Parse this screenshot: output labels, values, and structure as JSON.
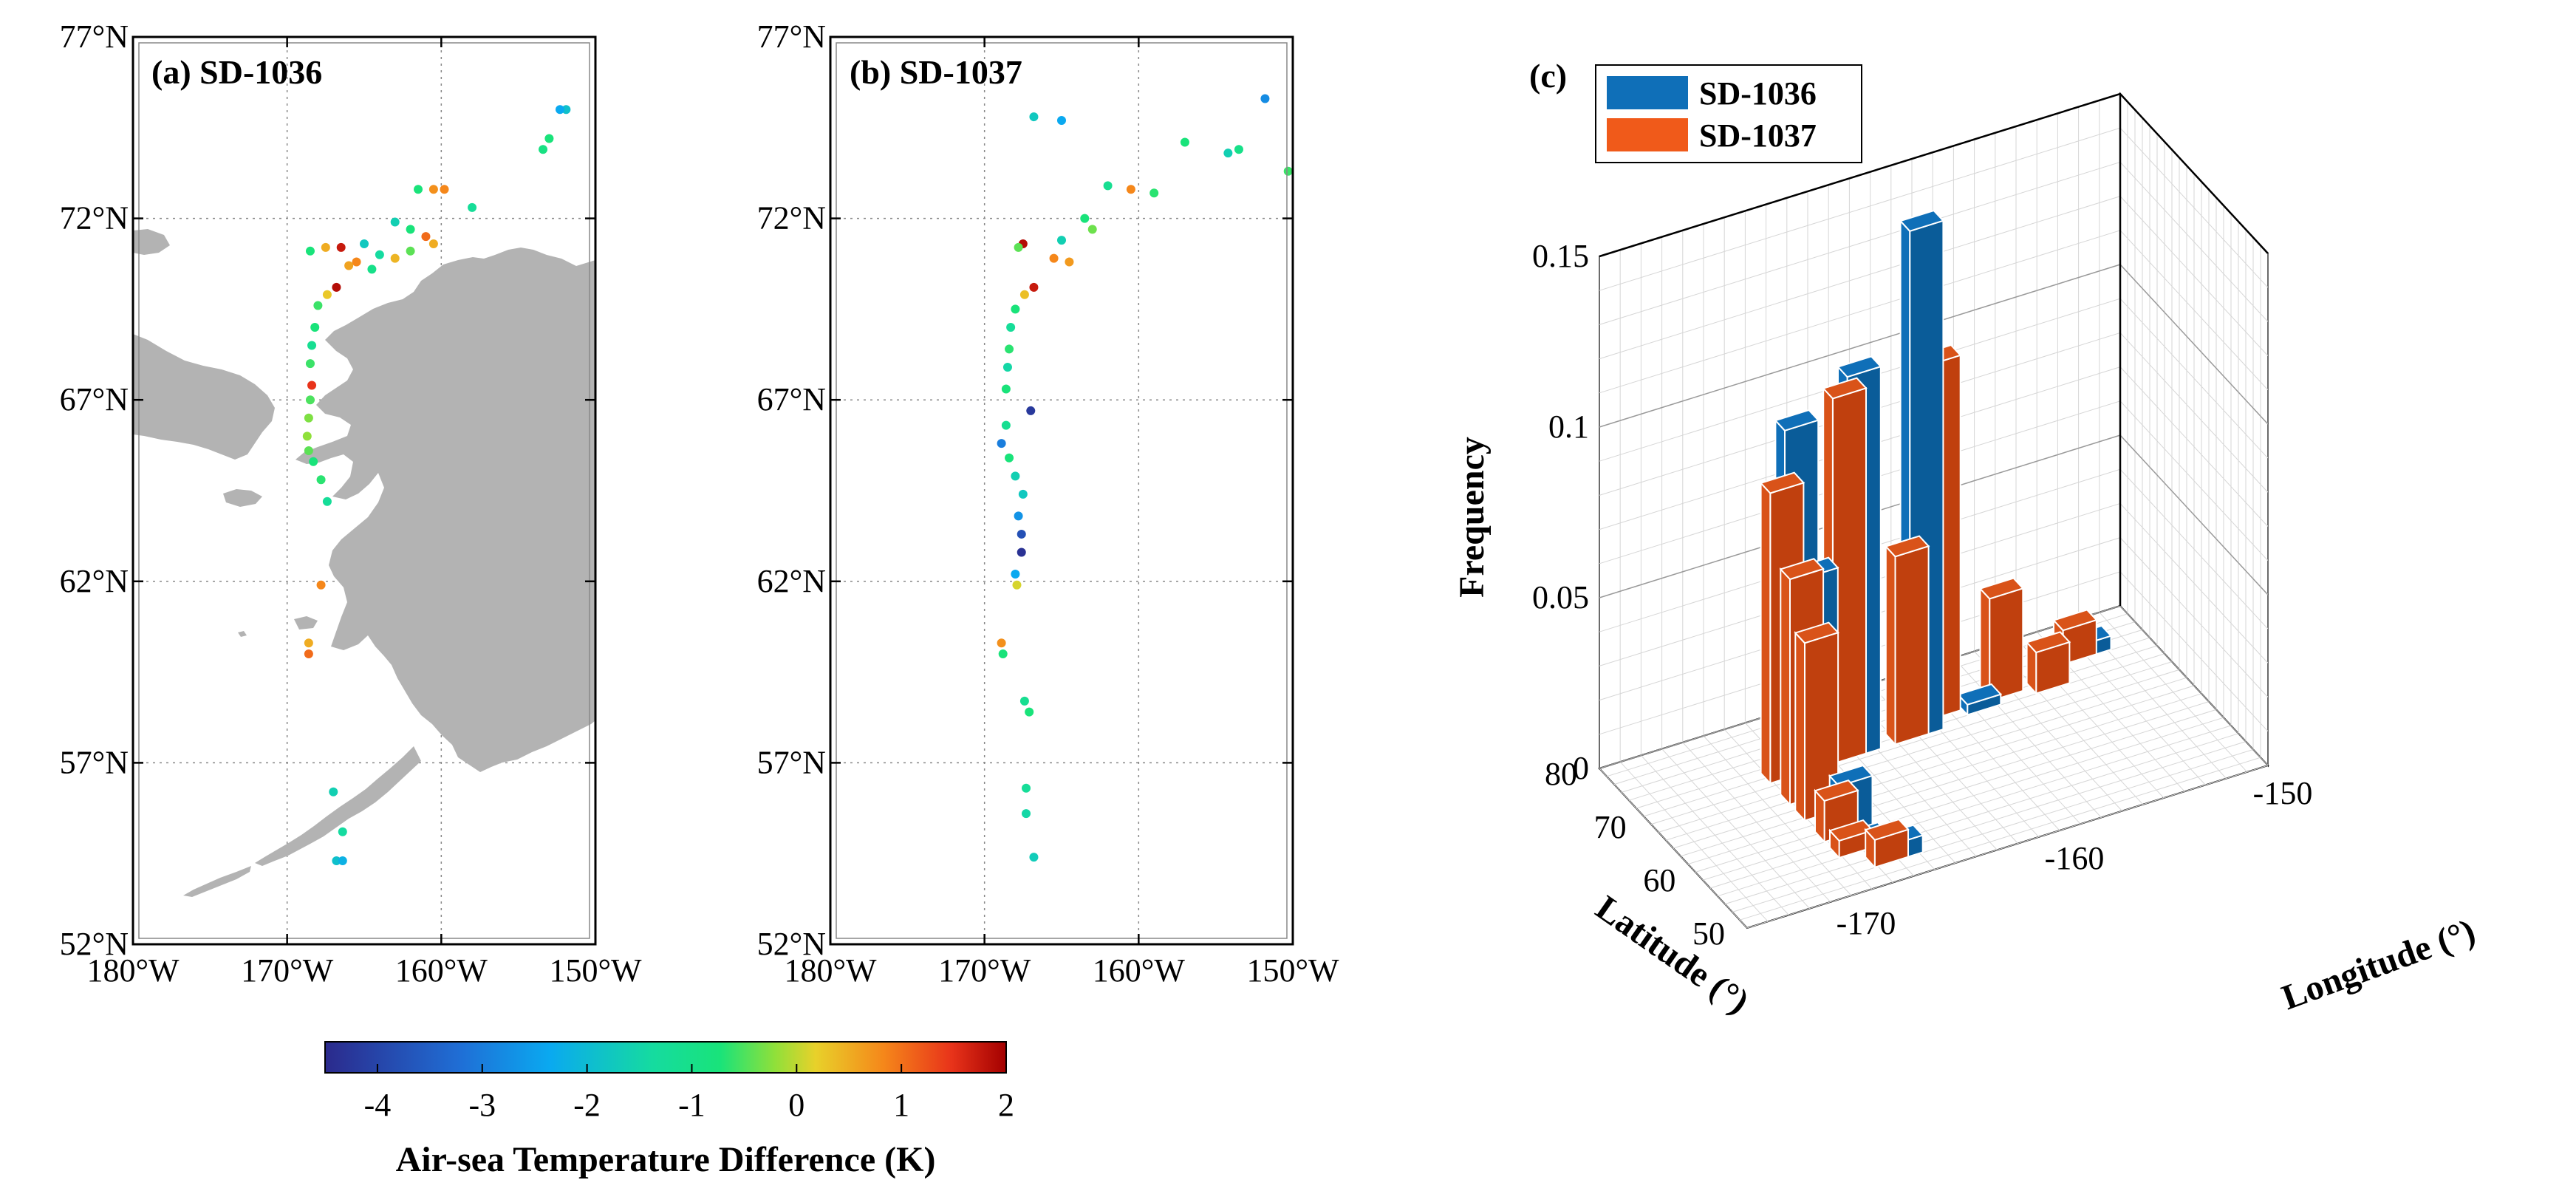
{
  "panels": {
    "a": {
      "title": "(a) SD-1036"
    },
    "b": {
      "title": "(b) SD-1037"
    },
    "c": {
      "title": "(c)"
    }
  },
  "map_axes": {
    "lat_ticks": [
      "77°N",
      "72°N",
      "67°N",
      "62°N",
      "57°N",
      "52°N"
    ],
    "lon_ticks": [
      "180°W",
      "170°W",
      "160°W",
      "150°W"
    ]
  },
  "colorbar": {
    "label": "Air-sea Temperature Difference (K)",
    "ticks": [
      "-4",
      "-3",
      "-2",
      "-1",
      "0",
      "1",
      "2"
    ],
    "colors": {
      "low": "#2b2a8c",
      "mid_low": "#0aa9f0",
      "mid": "#19e37a",
      "mid_high": "#e8d12a",
      "high": "#a30000"
    }
  },
  "chart_data": [
    {
      "type": "scatter",
      "title": "(a) SD-1036",
      "xlim": [
        -180,
        -150
      ],
      "ylim": [
        52,
        77
      ],
      "xlabel": "",
      "ylabel": "",
      "color_variable": "Air-sea Temperature Difference (K)",
      "points": [
        {
          "lon": -151.9,
          "lat": 75.0,
          "v": -2.2
        },
        {
          "lon": -152.3,
          "lat": 75.0,
          "v": -2.8
        },
        {
          "lon": -153.0,
          "lat": 74.2,
          "v": -1.0
        },
        {
          "lon": -153.4,
          "lat": 73.9,
          "v": -1.1
        },
        {
          "lon": -159.8,
          "lat": 72.8,
          "v": 1.0
        },
        {
          "lon": -160.5,
          "lat": 72.8,
          "v": 0.9
        },
        {
          "lon": -161.5,
          "lat": 72.8,
          "v": -1.0
        },
        {
          "lon": -158.0,
          "lat": 72.3,
          "v": -1.4
        },
        {
          "lon": -163.0,
          "lat": 71.9,
          "v": -1.8
        },
        {
          "lon": -162.0,
          "lat": 71.7,
          "v": -1.0
        },
        {
          "lon": -161.0,
          "lat": 71.5,
          "v": 1.2
        },
        {
          "lon": -160.5,
          "lat": 71.3,
          "v": 0.6
        },
        {
          "lon": -165.0,
          "lat": 71.3,
          "v": -2.0
        },
        {
          "lon": -166.5,
          "lat": 71.2,
          "v": 1.8
        },
        {
          "lon": -167.5,
          "lat": 71.2,
          "v": 0.6
        },
        {
          "lon": -168.5,
          "lat": 71.1,
          "v": -1.0
        },
        {
          "lon": -164.0,
          "lat": 71.0,
          "v": -1.5
        },
        {
          "lon": -163.0,
          "lat": 70.9,
          "v": 0.5
        },
        {
          "lon": -165.5,
          "lat": 70.8,
          "v": 1.0
        },
        {
          "lon": -166.0,
          "lat": 70.7,
          "v": 0.7
        },
        {
          "lon": -164.5,
          "lat": 70.6,
          "v": -1.2
        },
        {
          "lon": -162.0,
          "lat": 71.1,
          "v": -0.6
        },
        {
          "lon": -166.8,
          "lat": 70.1,
          "v": 1.9
        },
        {
          "lon": -167.4,
          "lat": 69.9,
          "v": 0.3
        },
        {
          "lon": -168.0,
          "lat": 69.6,
          "v": -0.8
        },
        {
          "lon": -168.2,
          "lat": 69.0,
          "v": -1.0
        },
        {
          "lon": -168.4,
          "lat": 68.5,
          "v": -1.3
        },
        {
          "lon": -168.5,
          "lat": 68.0,
          "v": -0.8
        },
        {
          "lon": -168.4,
          "lat": 67.4,
          "v": 1.6
        },
        {
          "lon": -168.5,
          "lat": 67.0,
          "v": -0.7
        },
        {
          "lon": -168.6,
          "lat": 66.5,
          "v": -0.4
        },
        {
          "lon": -168.7,
          "lat": 66.0,
          "v": -0.3
        },
        {
          "lon": -168.6,
          "lat": 65.6,
          "v": -0.6
        },
        {
          "lon": -168.3,
          "lat": 65.3,
          "v": -1.0
        },
        {
          "lon": -167.8,
          "lat": 64.8,
          "v": -0.9
        },
        {
          "lon": -167.4,
          "lat": 64.2,
          "v": -1.4
        },
        {
          "lon": -167.8,
          "lat": 61.9,
          "v": 1.0
        },
        {
          "lon": -168.6,
          "lat": 60.3,
          "v": 0.6
        },
        {
          "lon": -168.6,
          "lat": 60.0,
          "v": 1.2
        },
        {
          "lon": -167.0,
          "lat": 56.2,
          "v": -1.8
        },
        {
          "lon": -166.4,
          "lat": 55.1,
          "v": -1.5
        },
        {
          "lon": -166.8,
          "lat": 54.3,
          "v": -2.2
        },
        {
          "lon": -166.4,
          "lat": 54.3,
          "v": -2.6
        }
      ]
    },
    {
      "type": "scatter",
      "title": "(b) SD-1037",
      "xlim": [
        -180,
        -150
      ],
      "ylim": [
        52,
        77
      ],
      "xlabel": "",
      "ylabel": "",
      "color_variable": "Air-sea Temperature Difference (K)",
      "points": [
        {
          "lon": -151.8,
          "lat": 75.3,
          "v": -3.2
        },
        {
          "lon": -166.8,
          "lat": 74.8,
          "v": -2.0
        },
        {
          "lon": -165.0,
          "lat": 74.7,
          "v": -2.8
        },
        {
          "lon": -157.0,
          "lat": 74.1,
          "v": -1.0
        },
        {
          "lon": -153.5,
          "lat": 73.9,
          "v": -1.2
        },
        {
          "lon": -154.2,
          "lat": 73.8,
          "v": -1.8
        },
        {
          "lon": -150.3,
          "lat": 73.3,
          "v": -0.8
        },
        {
          "lon": -162.0,
          "lat": 72.9,
          "v": -1.3
        },
        {
          "lon": -160.5,
          "lat": 72.8,
          "v": 1.0
        },
        {
          "lon": -159.0,
          "lat": 72.7,
          "v": -0.9
        },
        {
          "lon": -163.5,
          "lat": 72.0,
          "v": -1.0
        },
        {
          "lon": -163.0,
          "lat": 71.7,
          "v": -0.5
        },
        {
          "lon": -165.0,
          "lat": 71.4,
          "v": -1.8
        },
        {
          "lon": -167.5,
          "lat": 71.3,
          "v": 1.9
        },
        {
          "lon": -167.8,
          "lat": 71.2,
          "v": -0.6
        },
        {
          "lon": -165.5,
          "lat": 70.9,
          "v": 1.0
        },
        {
          "lon": -164.5,
          "lat": 70.8,
          "v": 0.8
        },
        {
          "lon": -166.8,
          "lat": 70.1,
          "v": 1.8
        },
        {
          "lon": -167.4,
          "lat": 69.9,
          "v": 0.4
        },
        {
          "lon": -168.0,
          "lat": 69.5,
          "v": -1.0
        },
        {
          "lon": -168.3,
          "lat": 69.0,
          "v": -1.4
        },
        {
          "lon": -168.4,
          "lat": 68.4,
          "v": -0.9
        },
        {
          "lon": -168.5,
          "lat": 67.9,
          "v": -1.6
        },
        {
          "lon": -168.6,
          "lat": 67.3,
          "v": -1.0
        },
        {
          "lon": -167.0,
          "lat": 66.7,
          "v": -4.3
        },
        {
          "lon": -168.6,
          "lat": 66.3,
          "v": -1.3
        },
        {
          "lon": -168.9,
          "lat": 65.8,
          "v": -3.4
        },
        {
          "lon": -168.4,
          "lat": 65.4,
          "v": -1.0
        },
        {
          "lon": -168.0,
          "lat": 64.9,
          "v": -1.8
        },
        {
          "lon": -167.5,
          "lat": 64.4,
          "v": -2.0
        },
        {
          "lon": -167.8,
          "lat": 63.8,
          "v": -3.1
        },
        {
          "lon": -167.6,
          "lat": 63.3,
          "v": -4.0
        },
        {
          "lon": -167.6,
          "lat": 62.8,
          "v": -4.4
        },
        {
          "lon": -168.0,
          "lat": 62.2,
          "v": -2.8
        },
        {
          "lon": -167.9,
          "lat": 61.9,
          "v": 0.1
        },
        {
          "lon": -168.9,
          "lat": 60.3,
          "v": 0.9
        },
        {
          "lon": -168.8,
          "lat": 60.0,
          "v": -1.0
        },
        {
          "lon": -167.4,
          "lat": 58.7,
          "v": -1.3
        },
        {
          "lon": -167.1,
          "lat": 58.4,
          "v": -1.0
        },
        {
          "lon": -167.3,
          "lat": 56.3,
          "v": -1.4
        },
        {
          "lon": -167.3,
          "lat": 55.6,
          "v": -1.6
        },
        {
          "lon": -166.8,
          "lat": 54.4,
          "v": -1.9
        }
      ]
    },
    {
      "type": "bar3d",
      "title": "(c)",
      "xlabel": "Longitude (°)",
      "ylabel": "Latitude (°)",
      "zlabel": "Frequency",
      "x_ticks": [
        "-150",
        "-160",
        "-170"
      ],
      "y_ticks": [
        "80",
        "70",
        "60",
        "50"
      ],
      "z_ticks": [
        "0",
        "0.05",
        "0.1",
        "0.15"
      ],
      "xlim": [
        -175,
        -150
      ],
      "ylim": [
        50,
        80
      ],
      "zlim": [
        0,
        0.15
      ],
      "legend_position": "top-left",
      "series": [
        {
          "name": "SD-1036",
          "color": "#0f6fb8",
          "bars": [
            {
              "lon": -168,
              "lat": 71,
              "value": 0.102
            },
            {
              "lon": -165,
              "lat": 71,
              "value": 0.112
            },
            {
              "lon": -162,
              "lat": 71,
              "value": 0.149
            },
            {
              "lon": -168,
              "lat": 67,
              "value": 0.065
            },
            {
              "lon": -168,
              "lat": 60,
              "value": 0.015
            },
            {
              "lon": -168,
              "lat": 57,
              "value": 0.003
            },
            {
              "lon": -167,
              "lat": 54,
              "value": 0.005
            },
            {
              "lon": -159,
              "lat": 72,
              "value": 0.003
            },
            {
              "lon": -153,
              "lat": 75,
              "value": 0.004
            }
          ]
        },
        {
          "name": "SD-1037",
          "color": "#d95319",
          "bars": [
            {
              "lon": -168,
              "lat": 71,
              "value": 0.085
            },
            {
              "lon": -165,
              "lat": 71,
              "value": 0.107
            },
            {
              "lon": -162,
              "lat": 71,
              "value": 0.055
            },
            {
              "lon": -160,
              "lat": 73,
              "value": 0.104
            },
            {
              "lon": -168,
              "lat": 67,
              "value": 0.066
            },
            {
              "lon": -168,
              "lat": 64,
              "value": 0.052
            },
            {
              "lon": -168,
              "lat": 60,
              "value": 0.012
            },
            {
              "lon": -168,
              "lat": 57,
              "value": 0.005
            },
            {
              "lon": -167,
              "lat": 54,
              "value": 0.008
            },
            {
              "lon": -157,
              "lat": 73,
              "value": 0.03
            },
            {
              "lon": -153,
              "lat": 75,
              "value": 0.01
            },
            {
              "lon": -155,
              "lat": 72,
              "value": 0.012
            }
          ]
        }
      ]
    }
  ]
}
